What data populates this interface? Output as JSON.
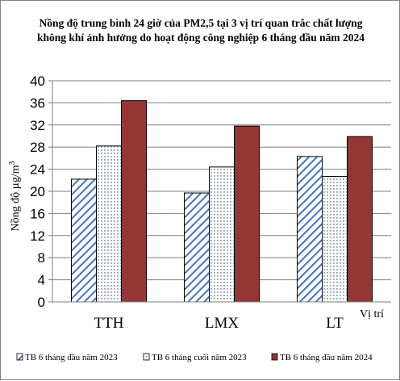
{
  "chart_data": {
    "type": "bar",
    "title_lines": [
      "Nồng độ trung bình 24 giờ của PM2,5 tại 3 vị trí quan trắc chất lượng",
      "không khí ảnh hưởng do hoạt động công nghiệp 6 tháng đầu năm 2024"
    ],
    "ylabel": "Nồng độ µg/m",
    "ylabel_sup": "3",
    "xlabel": "Vị trí",
    "ylim": [
      0,
      40
    ],
    "yticks": [
      "0",
      "4",
      "8",
      "12",
      "16",
      "20",
      "24",
      "28",
      "32",
      "36",
      "40"
    ],
    "grid": true,
    "legend_position": "bottom",
    "categories": [
      "TTH",
      "LMX",
      "LT"
    ],
    "series": [
      {
        "name": "TB 6 tháng đầu năm 2023",
        "values": [
          22.2,
          19.7,
          26.3
        ],
        "pattern": "hatch",
        "color": "#4472c4"
      },
      {
        "name": "TB 6 tháng cuối năm 2023",
        "values": [
          28.2,
          24.4,
          22.7
        ],
        "pattern": "dots",
        "color": "#1f3864"
      },
      {
        "name": "TB 6 tháng đầu năm 2024",
        "values": [
          36.4,
          31.8,
          29.9
        ],
        "pattern": "solid",
        "color": "#943634"
      }
    ]
  }
}
